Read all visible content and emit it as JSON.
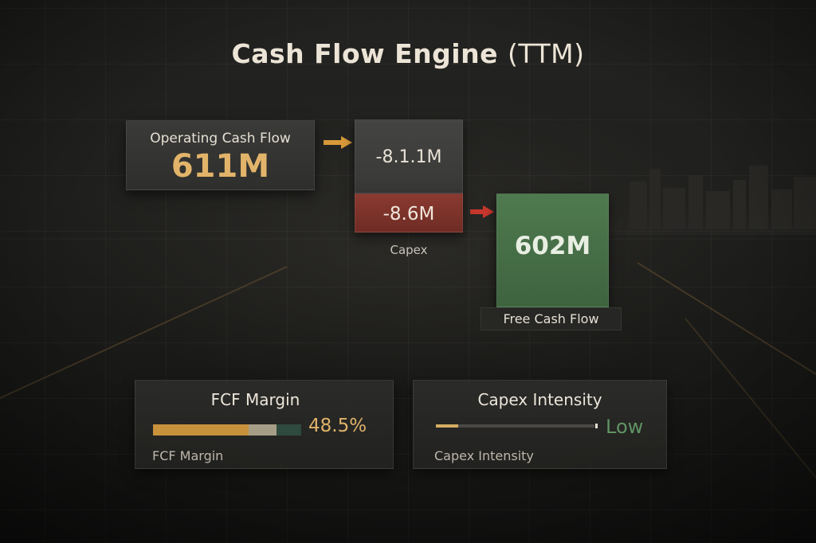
{
  "title": {
    "main": "Cash Flow Engine",
    "paren": "(TTM)"
  },
  "operating_cash_flow": {
    "label": "Operating Cash Flow",
    "value": "611M"
  },
  "adjustment": {
    "value": "-8.1.1M"
  },
  "capex": {
    "value": "-8.6M",
    "label": "Capex"
  },
  "free_cash_flow": {
    "value": "602M",
    "label": "Free Cash Flow"
  },
  "fcf_margin": {
    "title": "FCF Margin",
    "value_text": "48.5%",
    "subtitle": "FCF Margin",
    "bar_fraction": 0.485
  },
  "capex_intensity": {
    "title": "Capex Intensity",
    "value_text": "Low",
    "subtitle": "Capex Intensity",
    "level_fraction": 0.14
  },
  "colors": {
    "accent_gold": "#e2b46a",
    "capex_red": "#8a3a30",
    "fcf_green": "#4f7a4f",
    "low_green": "#5f9463",
    "arrow_gold": "#d99a3a",
    "arrow_red": "#c8382e"
  },
  "icons": [
    "arrow-right-icon",
    "arrow-right-icon"
  ]
}
